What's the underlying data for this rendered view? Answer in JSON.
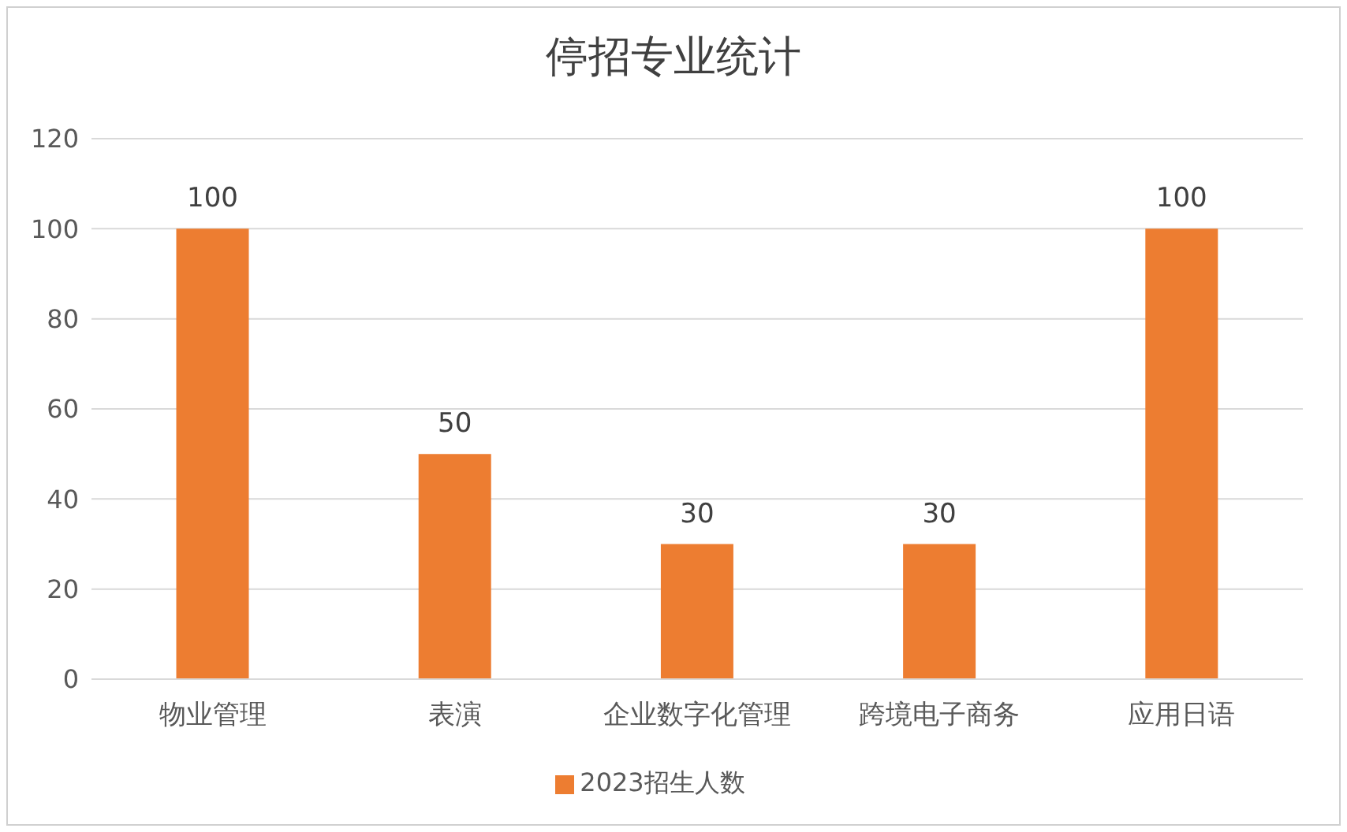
{
  "chart_data": {
    "type": "bar",
    "title": "停招专业统计",
    "categories": [
      "物业管理",
      "表演",
      "企业数字化管理",
      "跨境电子商务",
      "应用日语"
    ],
    "series": [
      {
        "name": "2023招生人数",
        "color": "#ed7d31",
        "values": [
          100,
          50,
          30,
          30,
          100
        ]
      }
    ],
    "ylim": [
      0,
      120
    ],
    "yticks": [
      0,
      20,
      40,
      60,
      80,
      100,
      120
    ],
    "grid": "y",
    "legend": "bottom",
    "data_labels": true
  }
}
